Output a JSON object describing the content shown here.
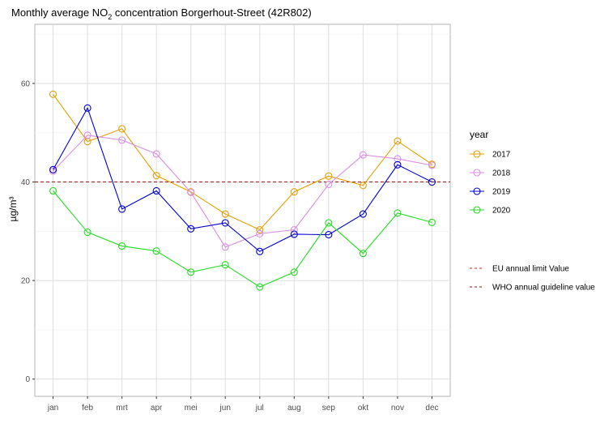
{
  "chart_data": {
    "type": "line",
    "title_prefix": "Monthly average NO",
    "title_subscript": "2",
    "title_suffix": " concentration Borgerhout-Street (42R802)",
    "xlabel": "",
    "ylabel": "µg/m³",
    "ylim": [
      -3.5,
      72
    ],
    "yticks": [
      0,
      20,
      40,
      60
    ],
    "categories": [
      "jan",
      "feb",
      "mrt",
      "apr",
      "mei",
      "jun",
      "jul",
      "aug",
      "sep",
      "okt",
      "nov",
      "dec"
    ],
    "legend_title": "year",
    "legend_position": "right",
    "series": [
      {
        "name": "2017",
        "color": "#e69f00",
        "values": [
          57.8,
          48.2,
          50.8,
          41.3,
          38.0,
          33.5,
          30.3,
          38.0,
          41.2,
          39.3,
          48.3,
          43.6
        ]
      },
      {
        "name": "2018",
        "color": "#da8ee0",
        "values": [
          42.2,
          49.5,
          48.5,
          45.7,
          37.9,
          26.8,
          29.5,
          30.3,
          39.5,
          45.5,
          44.7,
          43.4
        ]
      },
      {
        "name": "2019",
        "color": "#0000cd",
        "values": [
          42.5,
          55.0,
          34.5,
          38.2,
          30.5,
          31.7,
          25.9,
          29.4,
          29.3,
          33.5,
          43.5,
          40.0
        ]
      },
      {
        "name": "2020",
        "color": "#22dd22",
        "values": [
          38.2,
          29.8,
          27.0,
          26.0,
          21.7,
          23.2,
          18.7,
          21.7,
          31.7,
          25.5,
          33.7,
          31.8
        ]
      }
    ],
    "reference_lines": [
      {
        "name": "EU annual limit Value",
        "value": 40,
        "color": "#cc2222"
      },
      {
        "name": "WHO annual guideline value",
        "value": 40,
        "color": "#8b1a1a"
      }
    ],
    "grid": true
  }
}
